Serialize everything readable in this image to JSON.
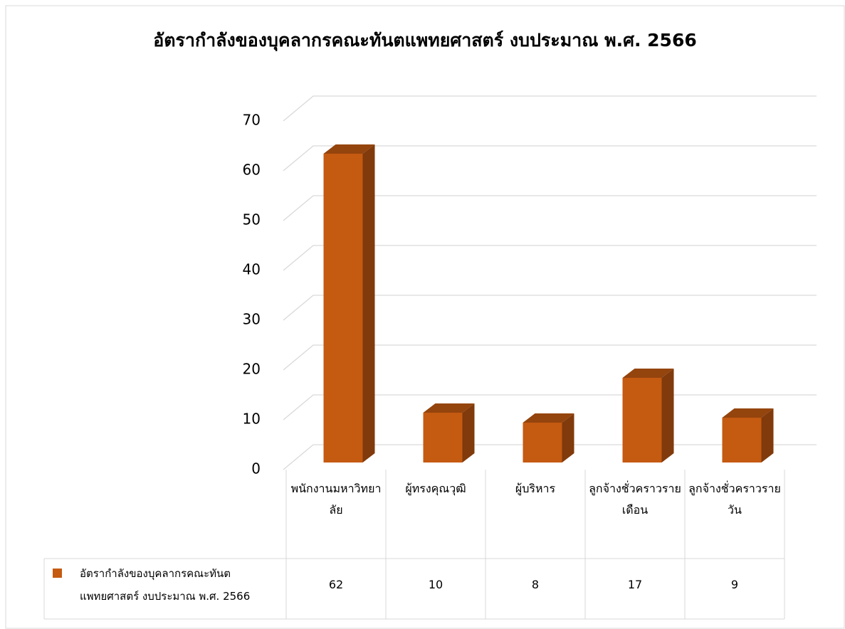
{
  "chart_data": {
    "type": "bar3d",
    "title": "อัตรากำลังของบุคลากรคณะทันตแพทยศาสตร์ งบประมาณ พ.ศ. 2566",
    "categories": [
      "พนักงานมหาวิทยาลัย",
      "ผู้ทรงคุณวุฒิ",
      "ผู้บริหาร",
      "ลูกจ้างชั่วคราวรายเดือน",
      "ลูกจ้างชั่วคราวรายวัน"
    ],
    "series": [
      {
        "name": "อัตรากำลังของบุคลากรคณะทันตแพทยศาสตร์ งบประมาณ พ.ศ. 2566",
        "color": "#c55a11",
        "values": [
          62,
          10,
          8,
          17,
          9
        ]
      }
    ],
    "ylim": [
      0,
      70
    ],
    "yticks": [
      0,
      10,
      20,
      30,
      40,
      50,
      60,
      70
    ],
    "grid": true,
    "data_table": true
  }
}
